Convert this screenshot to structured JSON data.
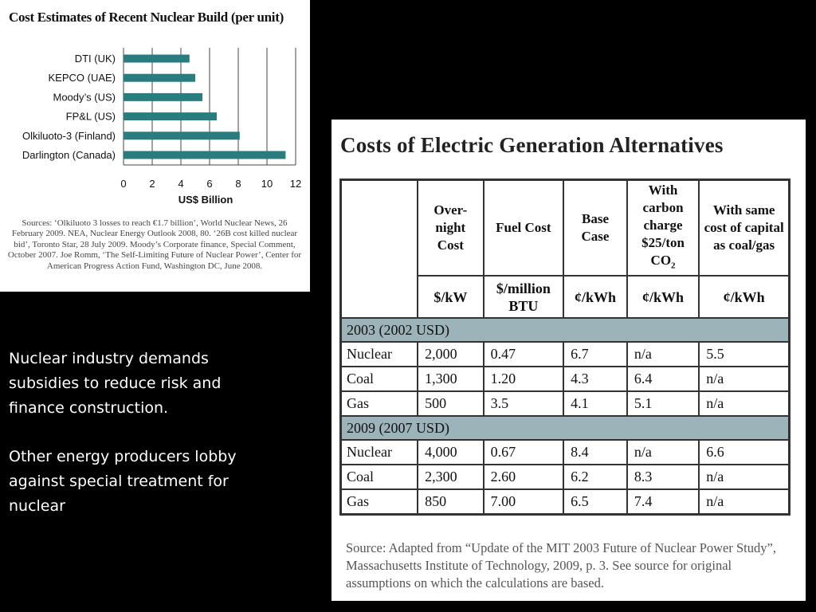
{
  "chart": {
    "title": "Cost Estimates of Recent Nuclear Build (per unit)",
    "sources": "Sources: ‘Olkiluoto 3 losses to reach €1.7 billion’, World Nuclear News, 26 February 2009. NEA, Nuclear Energy Outlook 2008, 80. ‘26B cost killed nuclear bid’, Toronto Star, 28 July 2009. Moody’s Corporate finance, Special Comment, October 2007. Joe Romm, ‘The Self-Limiting Future of Nuclear Power’, Center for American Progress Action Fund, Washington DC, June 2008."
  },
  "chart_data": {
    "type": "bar",
    "orientation": "horizontal",
    "title": "Cost Estimates of Recent Nuclear Build (per unit)",
    "categories": [
      "DTI (UK)",
      "KEPCO (UAE)",
      "Moody’s (US)",
      "FP&L (US)",
      "Olkiluoto-3 (Finland)",
      "Darlington (Canada)"
    ],
    "values": [
      4.6,
      5.0,
      5.5,
      6.5,
      8.1,
      11.3
    ],
    "xlabel": "US$ Billion",
    "ylabel": "",
    "xlim": [
      0,
      12
    ],
    "xticks": [
      0,
      2,
      4,
      6,
      8,
      10,
      12
    ],
    "grid": true,
    "bar_color": "#2a7d7f"
  },
  "text": {
    "para1": "Nuclear industry demands subsidies to reduce risk and finance construction.",
    "para2": "Other energy producers lobby against special treatment for nuclear"
  },
  "table": {
    "title": "Costs of Electric Generation Alternatives",
    "headers": {
      "overnight": "Over-night Cost",
      "fuel": "Fuel Cost",
      "base": "Base Case",
      "carbon_pre": "With carbon charge $25/ton CO",
      "carbon_sub": "2",
      "same": "With same cost of capital as coal/gas"
    },
    "units": [
      "$/kW",
      "$/million BTU",
      "¢/kWh",
      "¢/kWh",
      "¢/kWh"
    ],
    "sections": [
      {
        "label": "2003 (2002 USD)",
        "rows": [
          [
            "Nuclear",
            "2,000",
            "0.47",
            "6.7",
            "n/a",
            "5.5"
          ],
          [
            "Coal",
            "1,300",
            "1.20",
            "4.3",
            "6.4",
            "n/a"
          ],
          [
            "Gas",
            "500",
            "3.5",
            "4.1",
            "5.1",
            "n/a"
          ]
        ]
      },
      {
        "label": "2009 (2007 USD)",
        "rows": [
          [
            "Nuclear",
            "4,000",
            "0.67",
            "8.4",
            "n/a",
            "6.6"
          ],
          [
            "Coal",
            "2,300",
            "2.60",
            "6.2",
            "8.3",
            "n/a"
          ],
          [
            "Gas",
            "850",
            "7.00",
            "6.5",
            "7.4",
            "n/a"
          ]
        ]
      }
    ],
    "source": "Source: Adapted from “Update of the MIT 2003 Future of Nuclear Power Study”, Massachusetts Institute of Technology, 2009, p. 3. See source for original assumptions on which the calculations are based."
  }
}
